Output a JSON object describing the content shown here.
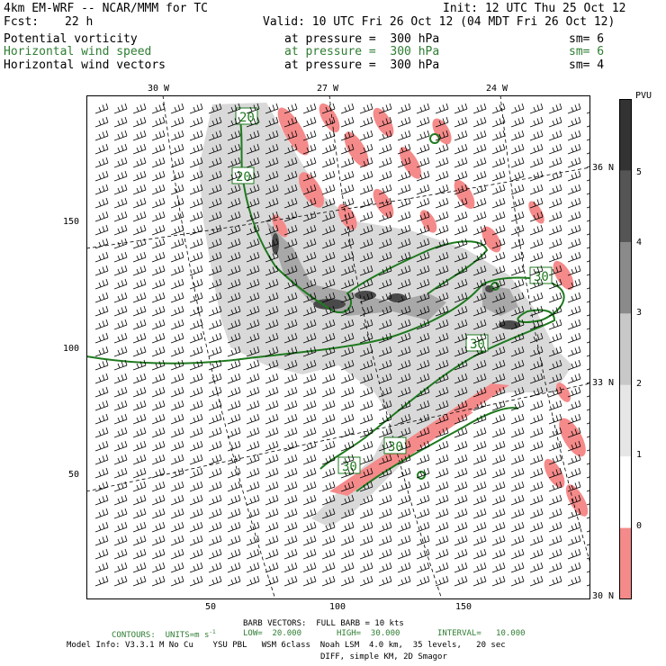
{
  "header": {
    "model": "4km EM-WRF -- NCAR/MMM for TC",
    "init": "Init: 12 UTC Thu 25 Oct 12",
    "fcst_label": "Fcst:",
    "fcst_value": "22 h",
    "valid": "Valid: 10 UTC Fri 26 Oct 12 (04 MDT Fri 26 Oct 12)"
  },
  "fields": [
    {
      "name": "Potential vorticity",
      "level": "at pressure =  300 hPa",
      "smooth": "sm= 6",
      "color": "#000000"
    },
    {
      "name": "Horizontal wind speed",
      "level": "at pressure =  300 hPa",
      "smooth": "sm= 6",
      "color": "#2e7d32"
    },
    {
      "name": "Horizontal wind vectors",
      "level": "at pressure =  300 hPa",
      "smooth": "sm= 4",
      "color": "#000000"
    }
  ],
  "map": {
    "lon_labels": [
      "30 W",
      "27 W",
      "24 W"
    ],
    "lat_labels": [
      "36 N",
      "33 N",
      "30 N"
    ],
    "y_ticks": [
      "150",
      "100",
      "50"
    ],
    "x_ticks": [
      "50",
      "100",
      "150"
    ],
    "contour_labels": [
      "20",
      "20",
      "30",
      "30",
      "30",
      "30"
    ]
  },
  "colorbar": {
    "unit": "PVU",
    "labels": [
      "5",
      "4",
      "3",
      "2",
      "1",
      "0"
    ],
    "colors": [
      "#333333",
      "#555555",
      "#8a8a8a",
      "#c8c8c8",
      "#e6e6e6",
      "#ffffff",
      "#f58a8a"
    ]
  },
  "footer": {
    "barb": "BARB VECTORS:  FULL BARB = 10 kts",
    "contours": "CONTOURS:  UNITS=m s",
    "contours_exp": "-1",
    "low": "LOW=  20.000",
    "high": "HIGH=  30.000",
    "interval": "INTERVAL=   10.000",
    "model_info": "Model Info: V3.3.1 M No Cu    YSU PBL   WSM 6class  Noah LSM  4.0 km,  35 levels,   20 sec",
    "model_info2": "DIFF, simple KM, 2D Smagor"
  }
}
